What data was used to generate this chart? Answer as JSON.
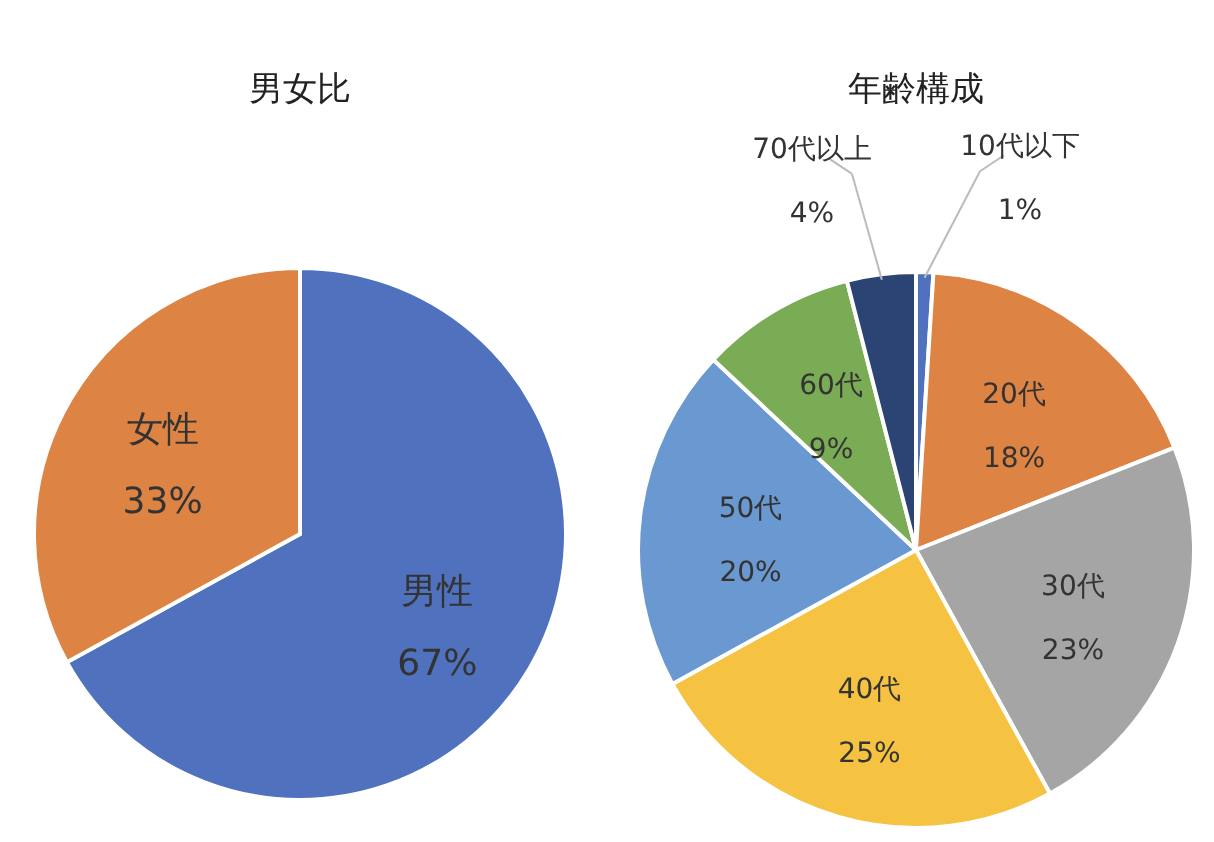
{
  "chart_data": [
    {
      "type": "pie",
      "title": "男女比",
      "categories": [
        "男性",
        "女性"
      ],
      "values": [
        67,
        33
      ],
      "colors": [
        "#4f71be",
        "#dd8344"
      ],
      "value_labels": [
        "67%",
        "33%"
      ]
    },
    {
      "type": "pie",
      "title": "年齢構成",
      "categories": [
        "10代以下",
        "20代",
        "30代",
        "40代",
        "50代",
        "60代",
        "70代以上"
      ],
      "values": [
        1,
        18,
        23,
        25,
        20,
        9,
        4
      ],
      "colors": [
        "#4f71be",
        "#dd8344",
        "#a5a5a5",
        "#f5c242",
        "#6a98d0",
        "#7aab55",
        "#2c4474"
      ],
      "value_labels": [
        "1%",
        "18%",
        "23%",
        "25%",
        "20%",
        "9%",
        "4%"
      ]
    }
  ]
}
